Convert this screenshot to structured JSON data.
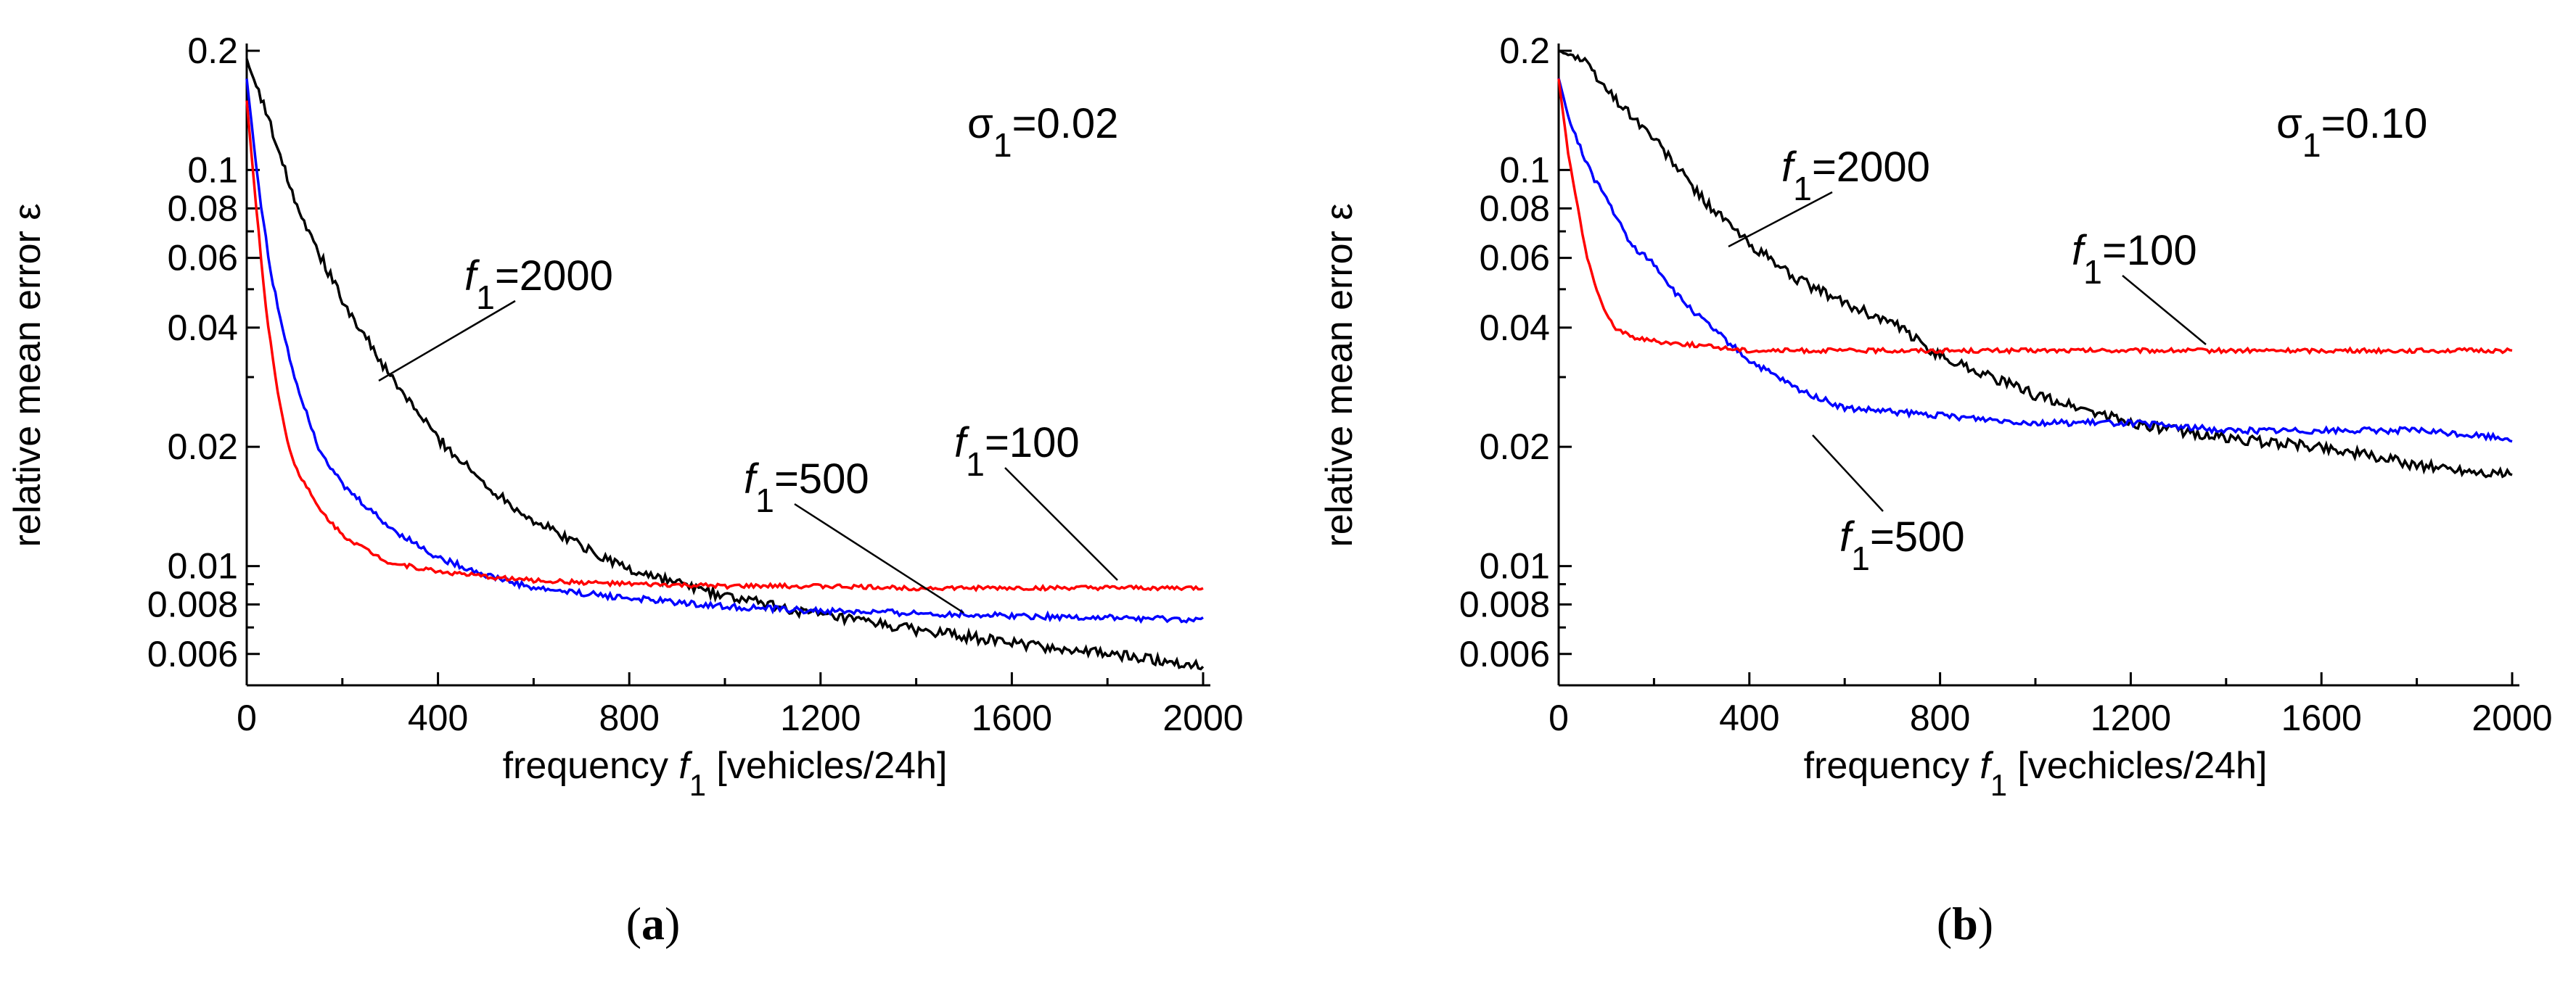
{
  "chart_data": [
    {
      "type": "line",
      "panel_label": "a",
      "sigma_label": "σ1=0.02",
      "xlabel": "frequency f1 [vehicles/24h]",
      "ylabel": "relative mean error ε",
      "xlim": [
        0,
        2000
      ],
      "ylim": [
        0.005,
        0.2
      ],
      "yscale": "log",
      "xticks": [
        0,
        400,
        800,
        1200,
        1600,
        2000
      ],
      "yticks": [
        0.2,
        0.1,
        0.08,
        0.06,
        0.04,
        0.02,
        0.01,
        0.008,
        0.006
      ],
      "ytick_labels": [
        "0.2",
        "0.1",
        "0.08",
        "0.06",
        "0.04",
        "0.02",
        "0.01",
        "0.008",
        "0.006"
      ],
      "series": [
        {
          "name": "f1=2000",
          "color": "#000000",
          "x": [
            0,
            50,
            100,
            150,
            200,
            300,
            400,
            500,
            600,
            800,
            1000,
            1200,
            1400,
            1600,
            1800,
            2000
          ],
          "y": [
            0.19,
            0.13,
            0.085,
            0.062,
            0.047,
            0.03,
            0.021,
            0.016,
            0.013,
            0.0098,
            0.0084,
            0.0075,
            0.0069,
            0.0064,
            0.006,
            0.0056
          ]
        },
        {
          "name": "f1=500",
          "color": "#0000ff",
          "x": [
            0,
            25,
            50,
            75,
            100,
            150,
            200,
            300,
            400,
            500,
            600,
            800,
            1000,
            1200,
            1400,
            1600,
            1800,
            2000
          ],
          "y": [
            0.17,
            0.09,
            0.055,
            0.04,
            0.03,
            0.02,
            0.016,
            0.0125,
            0.0105,
            0.0095,
            0.0088,
            0.0083,
            0.0079,
            0.0077,
            0.0076,
            0.0075,
            0.0074,
            0.0073
          ]
        },
        {
          "name": "f1=100",
          "color": "#ff0000",
          "x": [
            0,
            20,
            40,
            60,
            80,
            100,
            150,
            200,
            250,
            300,
            400,
            500,
            600,
            800,
            1000,
            1200,
            1400,
            1600,
            1800,
            2000
          ],
          "y": [
            0.15,
            0.08,
            0.045,
            0.03,
            0.022,
            0.018,
            0.014,
            0.012,
            0.011,
            0.0102,
            0.0097,
            0.0094,
            0.0092,
            0.009,
            0.0089,
            0.0089,
            0.0088,
            0.0088,
            0.0088,
            0.0088
          ]
        }
      ],
      "annotations": [
        {
          "text": "f1=2000",
          "series": "f1=2000",
          "at_x": 280
        },
        {
          "text": "f1=500",
          "series": "f1=500",
          "at_x": 1500
        },
        {
          "text": "f1=100",
          "series": "f1=100",
          "at_x": 1820
        }
      ]
    },
    {
      "type": "line",
      "panel_label": "b",
      "sigma_label": "σ1=0.10",
      "xlabel": "frequency f1 [vechicles/24h]",
      "ylabel": "relative mean error ε",
      "xlim": [
        0,
        2000
      ],
      "ylim": [
        0.005,
        0.2
      ],
      "yscale": "log",
      "xticks": [
        0,
        400,
        800,
        1200,
        1600,
        2000
      ],
      "yticks": [
        0.2,
        0.1,
        0.08,
        0.06,
        0.04,
        0.02,
        0.01,
        0.008,
        0.006
      ],
      "ytick_labels": [
        "0.2",
        "0.1",
        "0.08",
        "0.06",
        "0.04",
        "0.02",
        "0.01",
        "0.008",
        "0.006"
      ],
      "series": [
        {
          "name": "f1=2000",
          "color": "#000000",
          "x": [
            0,
            50,
            100,
            200,
            300,
            400,
            500,
            600,
            700,
            800,
            1000,
            1200,
            1400,
            1600,
            1800,
            2000
          ],
          "y": [
            0.2,
            0.19,
            0.16,
            0.12,
            0.085,
            0.065,
            0.053,
            0.046,
            0.041,
            0.034,
            0.027,
            0.023,
            0.021,
            0.02,
            0.018,
            0.017
          ]
        },
        {
          "name": "f1=500",
          "color": "#0000ff",
          "x": [
            0,
            25,
            50,
            75,
            100,
            150,
            200,
            250,
            300,
            400,
            500,
            600,
            800,
            1000,
            1200,
            1400,
            1600,
            1800,
            2000
          ],
          "y": [
            0.17,
            0.13,
            0.11,
            0.095,
            0.085,
            0.065,
            0.058,
            0.048,
            0.042,
            0.033,
            0.028,
            0.025,
            0.024,
            0.023,
            0.023,
            0.022,
            0.022,
            0.022,
            0.021
          ]
        },
        {
          "name": "f1=100",
          "color": "#ff0000",
          "x": [
            0,
            20,
            40,
            60,
            80,
            100,
            120,
            150,
            200,
            300,
            400,
            600,
            800,
            1000,
            1200,
            1400,
            1600,
            1800,
            2000
          ],
          "y": [
            0.17,
            0.11,
            0.08,
            0.06,
            0.05,
            0.043,
            0.04,
            0.038,
            0.037,
            0.036,
            0.035,
            0.035,
            0.035,
            0.035,
            0.035,
            0.035,
            0.035,
            0.035,
            0.035
          ]
        }
      ],
      "annotations": [
        {
          "text": "f1=2000",
          "series": "f1=2000",
          "at_x": 360
        },
        {
          "text": "f1=100",
          "series": "f1=100",
          "at_x": 1370
        },
        {
          "text": "f1=500",
          "series": "f1=500",
          "at_x": 550
        }
      ]
    }
  ]
}
